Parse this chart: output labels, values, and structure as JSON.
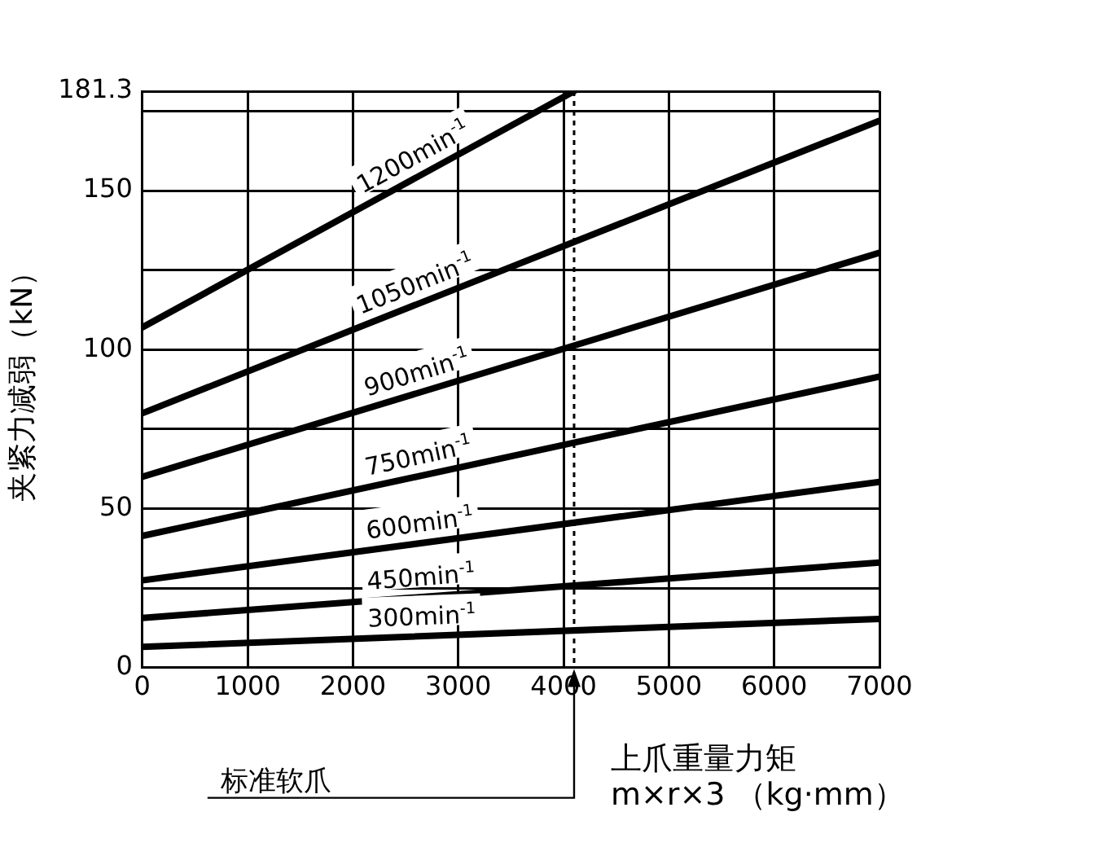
{
  "chart_data": {
    "type": "line",
    "ylabel": "夹紧力减弱（kN）",
    "xlabel": "上爪重量力矩\nm×r×3 （kg·mm）",
    "xlim": [
      0,
      7000
    ],
    "xticks": [
      0,
      1000,
      2000,
      3000,
      4000,
      5000,
      6000,
      7000
    ],
    "ylim": [
      0,
      181.3
    ],
    "yticks": [
      0,
      {
        "value": 25,
        "label": null
      },
      50,
      {
        "value": 75,
        "label": null
      },
      100,
      {
        "value": 125,
        "label": null
      },
      150,
      {
        "value": 175,
        "label": null
      },
      181.3
    ],
    "grid": true,
    "legend": false,
    "marker": "none",
    "line_style": "solid",
    "series": [
      {
        "name": "1200min$^{-1}$",
        "color": "#000000",
        "x": [
          0,
          4100
        ],
        "values": [
          107,
          181.3
        ]
      },
      {
        "name": "1050min$^{-1}$",
        "color": "#000000",
        "x": [
          0,
          7000
        ],
        "values": [
          80,
          172
        ]
      },
      {
        "name": "900min$^{-1}$",
        "color": "#000000",
        "x": [
          0,
          7000
        ],
        "values": [
          60,
          130.5
        ]
      },
      {
        "name": "750min$^{-1}$",
        "color": "#000000",
        "x": [
          0,
          7000
        ],
        "values": [
          41.4,
          91.5
        ]
      },
      {
        "name": "600min$^{-1}$",
        "color": "#000000",
        "x": [
          0,
          7000
        ],
        "values": [
          27.4,
          58.4
        ]
      },
      {
        "name": "450min$^{-1}$",
        "color": "#000000",
        "x": [
          0,
          7000
        ],
        "values": [
          15.6,
          33
        ]
      },
      {
        "name": "300min$^{-1}$",
        "color": "#000000",
        "x": [
          0,
          7000
        ],
        "values": [
          6.5,
          15.3
        ]
      }
    ],
    "ref_lines": [
      {
        "axis": "x",
        "value": 4100,
        "label": "标准软爪",
        "color": "#000000",
        "line_style": "dotted"
      }
    ]
  }
}
